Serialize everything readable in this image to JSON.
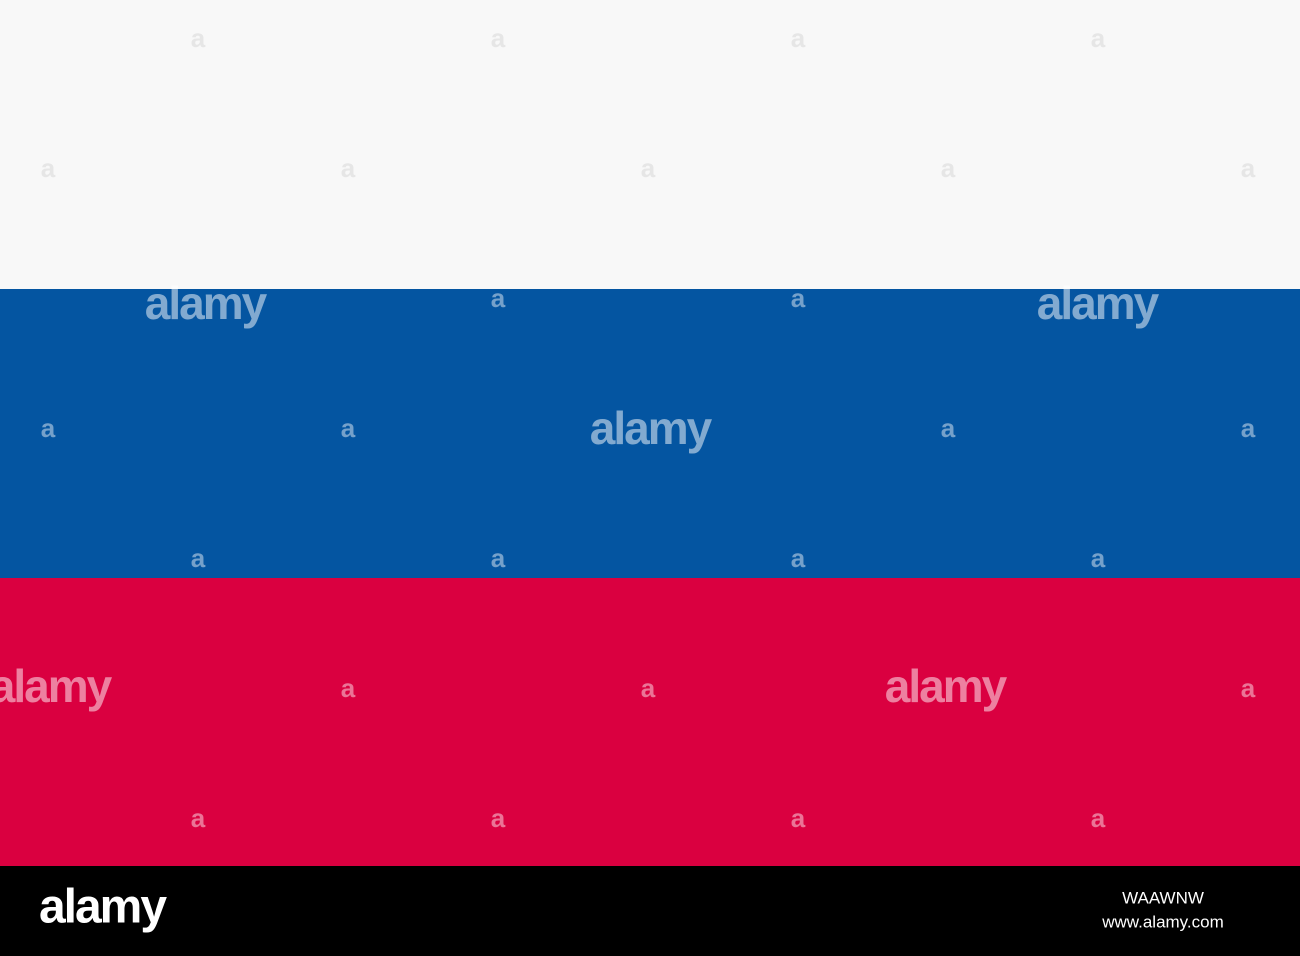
{
  "watermarks": {
    "large": [
      "alamy",
      "alamy",
      "alamy",
      "alamy",
      "alamy"
    ],
    "small": [
      "a",
      "a",
      "a",
      "a",
      "a",
      "a",
      "a",
      "a",
      "a",
      "a",
      "a",
      "a",
      "a",
      "a",
      "a",
      "a",
      "a",
      "a",
      "a",
      "a",
      "a",
      "a",
      "a",
      "a",
      "a",
      "a"
    ]
  },
  "footer": {
    "logo": "alamy",
    "image_id": "WAAWNW",
    "url": "www.alamy.com"
  }
}
